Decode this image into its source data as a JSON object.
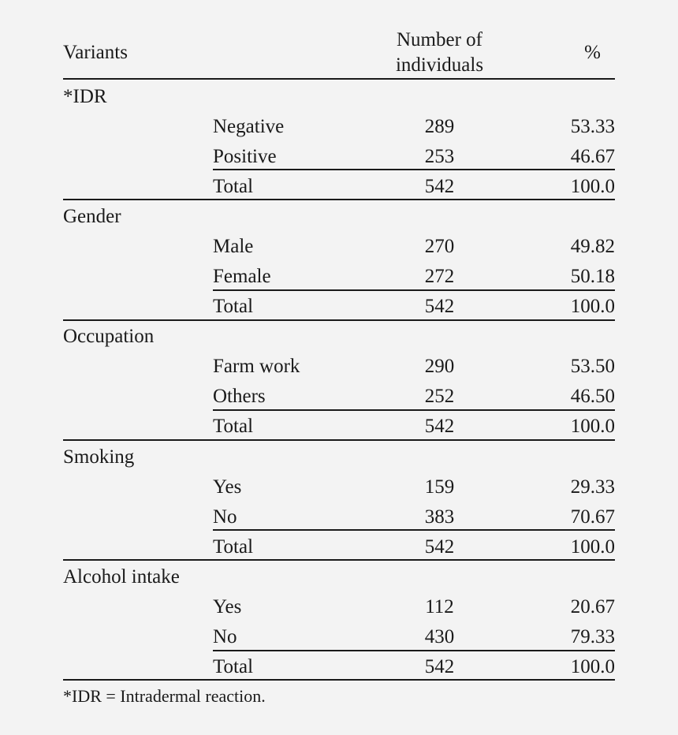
{
  "table": {
    "headers": {
      "variants": "Variants",
      "number_line1": "Number of",
      "number_line2": "individuals",
      "percent": "%"
    },
    "groups": [
      {
        "category": "*IDR",
        "rows": [
          {
            "label": "Negative",
            "number": "289",
            "percent": "53.33"
          },
          {
            "label": "Positive",
            "number": "253",
            "percent": "46.67"
          },
          {
            "label": "Total",
            "number": "542",
            "percent": "100.0"
          }
        ]
      },
      {
        "category": "Gender",
        "rows": [
          {
            "label": "Male",
            "number": "270",
            "percent": "49.82"
          },
          {
            "label": "Female",
            "number": "272",
            "percent": "50.18"
          },
          {
            "label": "Total",
            "number": "542",
            "percent": "100.0"
          }
        ]
      },
      {
        "category": "Occupation",
        "rows": [
          {
            "label": "Farm work",
            "number": "290",
            "percent": "53.50"
          },
          {
            "label": "Others",
            "number": "252",
            "percent": "46.50"
          },
          {
            "label": "Total",
            "number": "542",
            "percent": "100.0"
          }
        ]
      },
      {
        "category": "Smoking",
        "rows": [
          {
            "label": "Yes",
            "number": "159",
            "percent": "29.33"
          },
          {
            "label": "No",
            "number": "383",
            "percent": "70.67"
          },
          {
            "label": "Total",
            "number": "542",
            "percent": "100.0"
          }
        ]
      },
      {
        "category": "Alcohol intake",
        "rows": [
          {
            "label": "Yes",
            "number": "112",
            "percent": "20.67"
          },
          {
            "label": "No",
            "number": "430",
            "percent": "79.33"
          },
          {
            "label": "Total",
            "number": "542",
            "percent": "100.0"
          }
        ]
      }
    ],
    "footnote": "*IDR = Intradermal reaction."
  }
}
